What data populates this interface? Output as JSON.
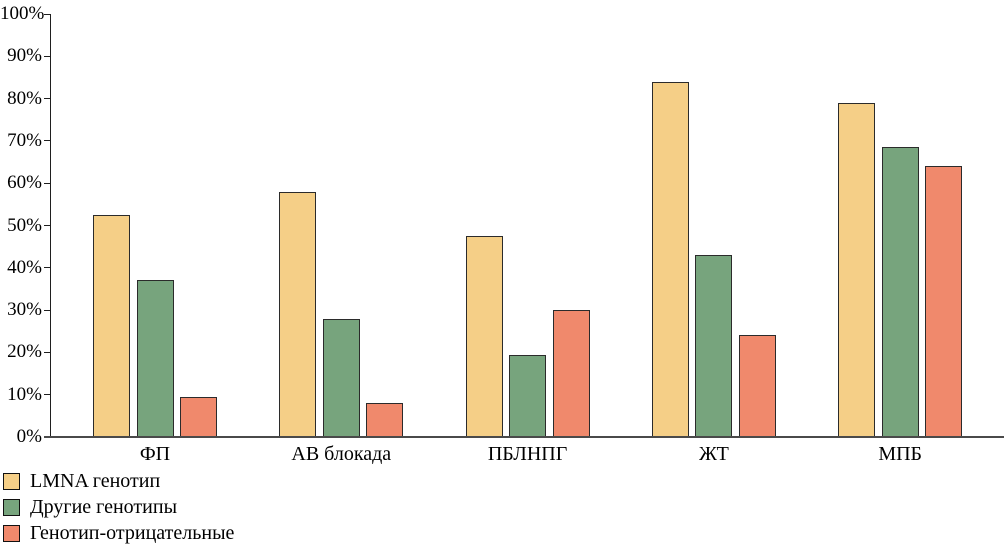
{
  "chart_data": {
    "type": "bar",
    "title": "",
    "xlabel": "",
    "ylabel": "",
    "categories": [
      "ФП",
      "АВ блокада",
      "ПБЛНПГ",
      "ЖТ",
      "МПБ"
    ],
    "series": [
      {
        "name": "LMNA генотип",
        "color": "#F5CF87",
        "values": [
          52.5,
          58,
          47.5,
          84,
          79
        ]
      },
      {
        "name": "Другие генотипы",
        "color": "#77A47D",
        "values": [
          37,
          28,
          19.5,
          43,
          68.5
        ]
      },
      {
        "name": "Генотип-отрицательные",
        "color": "#F0896C",
        "values": [
          9.5,
          8,
          30,
          24,
          64
        ]
      }
    ],
    "ylim": [
      0,
      100
    ],
    "ytick_step": 10,
    "ytick_labels": [
      "0%",
      "10%",
      "20%",
      "30%",
      "40%",
      "50%",
      "60%",
      "70%",
      "80%",
      "90%",
      "100%"
    ],
    "grid": false,
    "legend_position": "bottom-left",
    "bar_border_color": "#2b2b2b",
    "axis_color": "#1f1f1f"
  }
}
